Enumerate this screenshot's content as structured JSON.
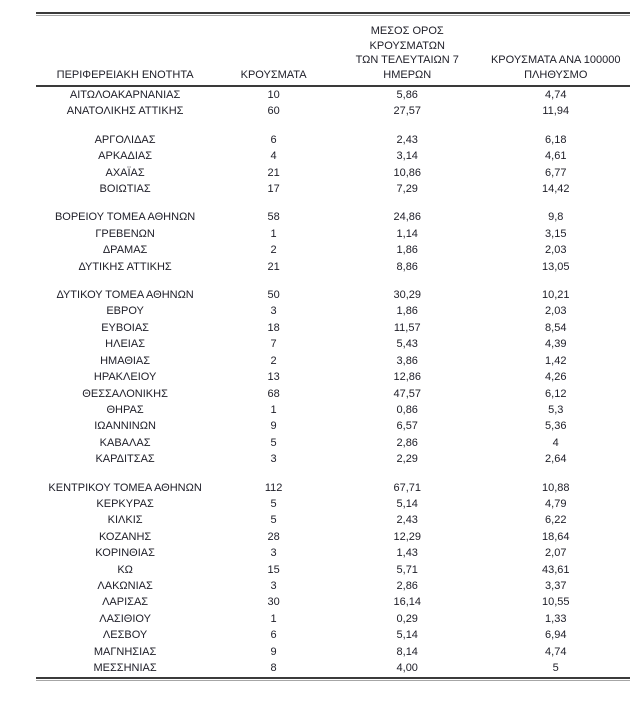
{
  "colors": {
    "text": "#20202a",
    "rule_dark": "#3b3b3b",
    "rule_light": "#a6a6a6",
    "header_underline": "#3a3a3a"
  },
  "table": {
    "headers": {
      "region": "ΠΕΡΙΦΕΡΕΙΑΚΗ ΕΝΟΤΗΤΑ",
      "cases": "ΚΡΟΥΣΜΑΤΑ",
      "avg7_lines": [
        "ΜΕΣΟΣ ΟΡΟΣ ΚΡΟΥΣΜΑΤΩΝ",
        "ΤΩΝ ΤΕΛΕΥΤΑΙΩΝ 7",
        "ΗΜΕΡΩΝ"
      ],
      "per100k_lines": [
        "ΚΡΟΥΣΜΑΤΑ ΑΝΑ 100000",
        "ΠΛΗΘΥΣΜΟ"
      ]
    },
    "groups": [
      [
        {
          "region": "ΑΙΤΩΛΟΑΚΑΡΝΑΝΙΑΣ",
          "cases": "10",
          "avg7": "5,86",
          "per100k": "4,74"
        },
        {
          "region": "ΑΝΑΤΟΛΙΚΗΣ ΑΤΤΙΚΗΣ",
          "cases": "60",
          "avg7": "27,57",
          "per100k": "11,94"
        }
      ],
      [
        {
          "region": "ΑΡΓΟΛΙΔΑΣ",
          "cases": "6",
          "avg7": "2,43",
          "per100k": "6,18"
        },
        {
          "region": "ΑΡΚΑΔΙΑΣ",
          "cases": "4",
          "avg7": "3,14",
          "per100k": "4,61"
        },
        {
          "region": "ΑΧΑΪΑΣ",
          "cases": "21",
          "avg7": "10,86",
          "per100k": "6,77"
        },
        {
          "region": "ΒΟΙΩΤΙΑΣ",
          "cases": "17",
          "avg7": "7,29",
          "per100k": "14,42"
        }
      ],
      [
        {
          "region": "ΒΟΡΕΙΟΥ ΤΟΜΕΑ ΑΘΗΝΩΝ",
          "cases": "58",
          "avg7": "24,86",
          "per100k": "9,8"
        },
        {
          "region": "ΓΡΕΒΕΝΩΝ",
          "cases": "1",
          "avg7": "1,14",
          "per100k": "3,15"
        },
        {
          "region": "ΔΡΑΜΑΣ",
          "cases": "2",
          "avg7": "1,86",
          "per100k": "2,03"
        },
        {
          "region": "ΔΥΤΙΚΗΣ ΑΤΤΙΚΗΣ",
          "cases": "21",
          "avg7": "8,86",
          "per100k": "13,05"
        }
      ],
      [
        {
          "region": "ΔΥΤΙΚΟΥ ΤΟΜΕΑ ΑΘΗΝΩΝ",
          "cases": "50",
          "avg7": "30,29",
          "per100k": "10,21"
        },
        {
          "region": "ΕΒΡΟΥ",
          "cases": "3",
          "avg7": "1,86",
          "per100k": "2,03"
        },
        {
          "region": "ΕΥΒΟΙΑΣ",
          "cases": "18",
          "avg7": "11,57",
          "per100k": "8,54"
        },
        {
          "region": "ΗΛΕΙΑΣ",
          "cases": "7",
          "avg7": "5,43",
          "per100k": "4,39"
        },
        {
          "region": "ΗΜΑΘΙΑΣ",
          "cases": "2",
          "avg7": "3,86",
          "per100k": "1,42"
        },
        {
          "region": "ΗΡΑΚΛΕΙΟΥ",
          "cases": "13",
          "avg7": "12,86",
          "per100k": "4,26"
        },
        {
          "region": "ΘΕΣΣΑΛΟΝΙΚΗΣ",
          "cases": "68",
          "avg7": "47,57",
          "per100k": "6,12"
        },
        {
          "region": "ΘΗΡΑΣ",
          "cases": "1",
          "avg7": "0,86",
          "per100k": "5,3"
        },
        {
          "region": "ΙΩΑΝΝΙΝΩΝ",
          "cases": "9",
          "avg7": "6,57",
          "per100k": "5,36"
        },
        {
          "region": "ΚΑΒΑΛΑΣ",
          "cases": "5",
          "avg7": "2,86",
          "per100k": "4"
        },
        {
          "region": "ΚΑΡΔΙΤΣΑΣ",
          "cases": "3",
          "avg7": "2,29",
          "per100k": "2,64"
        }
      ],
      [
        {
          "region": "ΚΕΝΤΡΙΚΟΥ ΤΟΜΕΑ ΑΘΗΝΩΝ",
          "cases": "112",
          "avg7": "67,71",
          "per100k": "10,88"
        },
        {
          "region": "ΚΕΡΚΥΡΑΣ",
          "cases": "5",
          "avg7": "5,14",
          "per100k": "4,79"
        },
        {
          "region": "ΚΙΛΚΙΣ",
          "cases": "5",
          "avg7": "2,43",
          "per100k": "6,22"
        },
        {
          "region": "ΚΟΖΑΝΗΣ",
          "cases": "28",
          "avg7": "12,29",
          "per100k": "18,64"
        },
        {
          "region": "ΚΟΡΙΝΘΙΑΣ",
          "cases": "3",
          "avg7": "1,43",
          "per100k": "2,07"
        },
        {
          "region": "ΚΩ",
          "cases": "15",
          "avg7": "5,71",
          "per100k": "43,61"
        },
        {
          "region": "ΛΑΚΩΝΙΑΣ",
          "cases": "3",
          "avg7": "2,86",
          "per100k": "3,37"
        },
        {
          "region": "ΛΑΡΙΣΑΣ",
          "cases": "30",
          "avg7": "16,14",
          "per100k": "10,55"
        },
        {
          "region": "ΛΑΣΙΘΙΟΥ",
          "cases": "1",
          "avg7": "0,29",
          "per100k": "1,33"
        },
        {
          "region": "ΛΕΣΒΟΥ",
          "cases": "6",
          "avg7": "5,14",
          "per100k": "6,94"
        },
        {
          "region": "ΜΑΓΝΗΣΙΑΣ",
          "cases": "9",
          "avg7": "8,14",
          "per100k": "4,74"
        },
        {
          "region": "ΜΕΣΣΗΝΙΑΣ",
          "cases": "8",
          "avg7": "4,00",
          "per100k": "5"
        }
      ]
    ]
  }
}
